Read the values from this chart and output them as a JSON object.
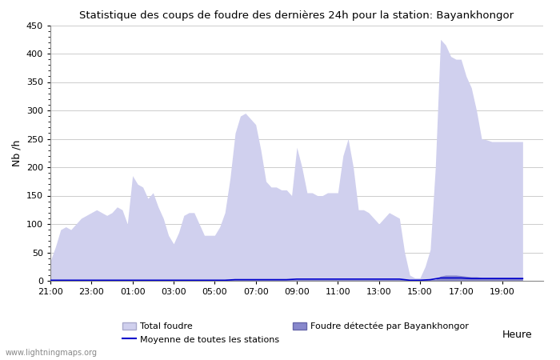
{
  "title": "Statistique des coups de foudre des dernières 24h pour la station: Bayankhongor",
  "xlabel": "Heure",
  "ylabel": "Nb /h",
  "xlim": [
    0,
    24
  ],
  "ylim": [
    0,
    450
  ],
  "yticks": [
    0,
    50,
    100,
    150,
    200,
    250,
    300,
    350,
    400,
    450
  ],
  "xtick_labels": [
    "21:00",
    "23:00",
    "01:00",
    "03:00",
    "05:00",
    "07:00",
    "09:00",
    "11:00",
    "13:00",
    "15:00",
    "17:00",
    "19:00"
  ],
  "xtick_positions": [
    0,
    2,
    4,
    6,
    8,
    10,
    12,
    14,
    16,
    18,
    20,
    22
  ],
  "background_color": "#ffffff",
  "grid_color": "#cccccc",
  "total_foudre_color": "#d0d0ee",
  "bayankhongor_color": "#8888cc",
  "moyenne_color": "#0000cc",
  "watermark": "www.lightningmaps.org",
  "total_foudre_x": [
    0,
    0.25,
    0.5,
    0.75,
    1,
    1.25,
    1.5,
    1.75,
    2,
    2.25,
    2.5,
    2.75,
    3,
    3.25,
    3.5,
    3.75,
    4,
    4.25,
    4.5,
    4.75,
    5,
    5.25,
    5.5,
    5.75,
    6,
    6.25,
    6.5,
    6.75,
    7,
    7.25,
    7.5,
    7.75,
    8,
    8.25,
    8.5,
    8.75,
    9,
    9.25,
    9.5,
    9.75,
    10,
    10.25,
    10.5,
    10.75,
    11,
    11.25,
    11.5,
    11.75,
    12,
    12.25,
    12.5,
    12.75,
    13,
    13.25,
    13.5,
    13.75,
    14,
    14.25,
    14.5,
    14.75,
    15,
    15.25,
    15.5,
    15.75,
    16,
    16.25,
    16.5,
    16.75,
    17,
    17.25,
    17.5,
    17.75,
    18,
    18.25,
    18.5,
    18.75,
    19,
    19.25,
    19.5,
    19.75,
    20,
    20.25,
    20.5,
    20.75,
    21,
    21.25,
    21.5,
    21.75,
    22,
    22.25,
    22.5,
    22.75,
    23
  ],
  "total_foudre_y": [
    35,
    60,
    90,
    95,
    90,
    100,
    110,
    115,
    120,
    125,
    120,
    115,
    120,
    130,
    125,
    100,
    185,
    170,
    165,
    145,
    155,
    130,
    110,
    80,
    65,
    85,
    115,
    120,
    120,
    100,
    80,
    80,
    80,
    95,
    120,
    180,
    260,
    290,
    295,
    285,
    275,
    230,
    175,
    165,
    165,
    160,
    160,
    150,
    235,
    200,
    155,
    155,
    150,
    150,
    155,
    155,
    155,
    220,
    250,
    200,
    125,
    125,
    120,
    110,
    100,
    110,
    120,
    115,
    110,
    50,
    10,
    5,
    5,
    25,
    55,
    200,
    425,
    415,
    395,
    390,
    390,
    360,
    340,
    300,
    250,
    248,
    245,
    245,
    245,
    245,
    245,
    245,
    245
  ],
  "bayankhongor_x": [
    0,
    0.25,
    0.5,
    0.75,
    1,
    1.25,
    1.5,
    1.75,
    2,
    2.25,
    2.5,
    2.75,
    3,
    3.25,
    3.5,
    3.75,
    4,
    4.25,
    4.5,
    4.75,
    5,
    5.25,
    5.5,
    5.75,
    6,
    6.25,
    6.5,
    6.75,
    7,
    7.25,
    7.5,
    7.75,
    8,
    8.25,
    8.5,
    8.75,
    9,
    9.25,
    9.5,
    9.75,
    10,
    10.25,
    10.5,
    10.75,
    11,
    11.25,
    11.5,
    11.75,
    12,
    12.25,
    12.5,
    12.75,
    13,
    13.25,
    13.5,
    13.75,
    14,
    14.25,
    14.5,
    14.75,
    15,
    15.25,
    15.5,
    15.75,
    16,
    16.25,
    16.5,
    16.75,
    17,
    17.25,
    17.5,
    17.75,
    18,
    18.25,
    18.5,
    18.75,
    19,
    19.25,
    19.5,
    19.75,
    20,
    20.25,
    20.5,
    20.75,
    21,
    21.25,
    21.5,
    21.75,
    22,
    22.25,
    22.5,
    22.75,
    23
  ],
  "bayankhongor_y": [
    2,
    2,
    2,
    2,
    2,
    2,
    2,
    2,
    2,
    2,
    2,
    2,
    2,
    2,
    2,
    2,
    2,
    2,
    2,
    2,
    2,
    2,
    2,
    2,
    2,
    2,
    2,
    2,
    2,
    2,
    2,
    2,
    2,
    2,
    2,
    2,
    2,
    2,
    2,
    2,
    2,
    2,
    2,
    2,
    2,
    2,
    2,
    2,
    2,
    2,
    2,
    2,
    2,
    2,
    2,
    2,
    2,
    2,
    2,
    2,
    2,
    2,
    2,
    2,
    2,
    2,
    2,
    2,
    2,
    2,
    2,
    2,
    2,
    2,
    2,
    2,
    8,
    10,
    10,
    10,
    9,
    8,
    7,
    7,
    6,
    6,
    6,
    6,
    6,
    6,
    6,
    6,
    6
  ],
  "moyenne_x": [
    0,
    0.5,
    1,
    1.5,
    2,
    2.5,
    3,
    3.5,
    4,
    4.5,
    5,
    5.5,
    6,
    6.5,
    7,
    7.5,
    8,
    8.5,
    9,
    9.5,
    10,
    10.5,
    11,
    11.5,
    12,
    12.5,
    13,
    13.5,
    14,
    14.5,
    15,
    15.5,
    16,
    16.5,
    17,
    17.5,
    18,
    18.5,
    19,
    19.5,
    20,
    20.5,
    21,
    21.5,
    22,
    22.5,
    23
  ],
  "moyenne_y": [
    1,
    1,
    1,
    1,
    1,
    1,
    1,
    1,
    1,
    1,
    1,
    1,
    1,
    1,
    1,
    1,
    1,
    1,
    2,
    2,
    2,
    2,
    2,
    2,
    3,
    3,
    3,
    3,
    3,
    3,
    3,
    3,
    3,
    3,
    3,
    1,
    1,
    2,
    5,
    5,
    5,
    4,
    4,
    4,
    4,
    4,
    4
  ]
}
